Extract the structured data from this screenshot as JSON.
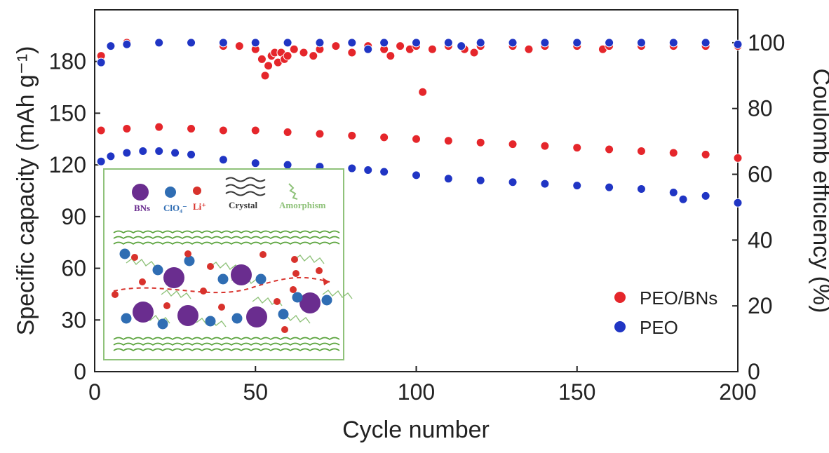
{
  "chart_data": {
    "type": "scatter",
    "title": "",
    "xlabel": "Cycle number",
    "ylabel_left": "Specific capacity (mAh g⁻¹)",
    "ylabel_right": "Coulomb efficiency (%)",
    "xlim": [
      0,
      200
    ],
    "ylim_left": [
      0,
      210
    ],
    "ylim_right": [
      0,
      110
    ],
    "x_ticks": [
      0,
      50,
      100,
      150,
      200
    ],
    "y_ticks_left": [
      0,
      30,
      60,
      90,
      120,
      150,
      180
    ],
    "y_ticks_right": [
      0,
      20,
      40,
      60,
      80,
      100
    ],
    "grid": false,
    "legend_position": "bottom-right",
    "colors": {
      "PEO/BNs": "#e5262b",
      "PEO": "#2035c4"
    },
    "series": [
      {
        "name": "PEO/BNs",
        "role": "capacity",
        "axis": "left",
        "x": [
          2,
          10,
          20,
          30,
          40,
          50,
          60,
          70,
          80,
          90,
          100,
          110,
          120,
          130,
          140,
          150,
          160,
          170,
          180,
          190,
          200
        ],
        "values": [
          140,
          141,
          142,
          141,
          140,
          140,
          139,
          138,
          137,
          136,
          135,
          134,
          133,
          132,
          131,
          130,
          129,
          128,
          127,
          126,
          124
        ]
      },
      {
        "name": "PEO",
        "role": "capacity",
        "axis": "left",
        "x": [
          2,
          5,
          10,
          15,
          20,
          25,
          30,
          40,
          50,
          60,
          70,
          80,
          85,
          90,
          100,
          110,
          120,
          130,
          140,
          150,
          160,
          170,
          180,
          183,
          190,
          200
        ],
        "values": [
          122,
          125,
          127,
          128,
          128,
          127,
          126,
          123,
          121,
          120,
          119,
          118,
          117,
          116,
          114,
          112,
          111,
          110,
          109,
          108,
          107,
          106,
          104,
          100,
          102,
          98
        ]
      },
      {
        "name": "PEO/BNs",
        "role": "efficiency",
        "axis": "right",
        "x": [
          2,
          10,
          20,
          30,
          40,
          45,
          50,
          52,
          53,
          54,
          55,
          56,
          57,
          58,
          59,
          60,
          62,
          65,
          68,
          70,
          75,
          80,
          85,
          90,
          92,
          95,
          98,
          100,
          102,
          105,
          110,
          115,
          118,
          120,
          130,
          135,
          140,
          150,
          158,
          160,
          170,
          180,
          190,
          200
        ],
        "values": [
          96,
          100,
          100,
          100,
          99,
          99,
          98,
          95,
          90,
          93,
          96,
          97,
          94,
          97,
          95,
          96,
          98,
          97,
          96,
          98,
          99,
          97,
          99,
          98,
          96,
          99,
          98,
          99,
          85,
          98,
          99,
          98,
          97,
          99,
          99,
          98,
          99,
          99,
          98,
          99,
          99,
          99,
          99,
          99
        ]
      },
      {
        "name": "PEO",
        "role": "efficiency",
        "axis": "right",
        "x": [
          2,
          5,
          10,
          20,
          30,
          40,
          50,
          60,
          70,
          80,
          85,
          90,
          100,
          110,
          114,
          120,
          130,
          140,
          150,
          160,
          170,
          180,
          190,
          200
        ],
        "values": [
          94,
          99,
          99.5,
          100,
          100,
          100,
          100,
          100,
          100,
          100,
          98,
          100,
          100,
          100,
          99,
          100,
          100,
          100,
          100,
          100,
          100,
          100,
          100,
          99.5
        ]
      }
    ],
    "inset": {
      "legend": [
        {
          "label": "BNs",
          "color": "#6a2d8f"
        },
        {
          "label": "ClO₄⁻",
          "color": "#2f6db3"
        },
        {
          "label": "Li⁺",
          "color": "#d8322c"
        },
        {
          "label": "Crystal",
          "color": "#3a3a3a"
        },
        {
          "label": "Amorphism",
          "color": "#8fc27a"
        }
      ]
    }
  }
}
